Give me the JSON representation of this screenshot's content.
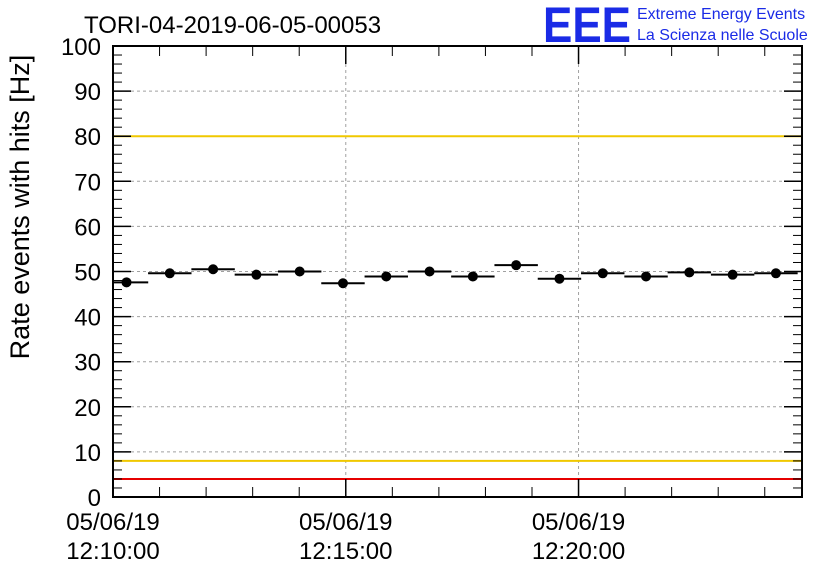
{
  "logo": {
    "letters": "EEE",
    "line1": "Extreme Energy Events",
    "line2": "La Scienza nelle Scuole",
    "color": "#1a2be6"
  },
  "chart_data": {
    "type": "scatter",
    "title": "TORI-04-2019-06-05-00053",
    "xlabel": "",
    "ylabel": "Rate events with hits [Hz]",
    "ylim": [
      0,
      100
    ],
    "xlim_minutes": [
      12.0,
      26.8
    ],
    "yticks": [
      "0",
      "10",
      "20",
      "30",
      "40",
      "50",
      "60",
      "70",
      "80",
      "90",
      "100"
    ],
    "xticks": [
      {
        "minute": 12.0,
        "date": "05/06/19",
        "time": "12:10:00"
      },
      {
        "minute": 17.0,
        "date": "05/06/19",
        "time": "12:15:00"
      },
      {
        "minute": 22.0,
        "date": "05/06/19",
        "time": "12:20:00"
      }
    ],
    "grid": true,
    "bin_width_minutes": 0.933,
    "points": {
      "x_minutes": [
        12.29,
        13.22,
        14.15,
        15.08,
        16.01,
        16.94,
        17.87,
        18.8,
        19.73,
        20.66,
        21.59,
        22.52,
        23.45,
        24.38,
        25.31,
        26.24
      ],
      "y": [
        47.6,
        49.6,
        50.5,
        49.3,
        50.0,
        47.4,
        48.9,
        50.0,
        48.9,
        51.4,
        48.4,
        49.6,
        48.9,
        49.8,
        49.3,
        49.6
      ]
    },
    "reference_lines": [
      {
        "value": 80,
        "color": "#f0c800"
      },
      {
        "value": 8,
        "color": "#f0c800"
      },
      {
        "value": 4,
        "color": "#e60000"
      },
      {
        "value": 100,
        "color": "#e60000"
      }
    ]
  }
}
